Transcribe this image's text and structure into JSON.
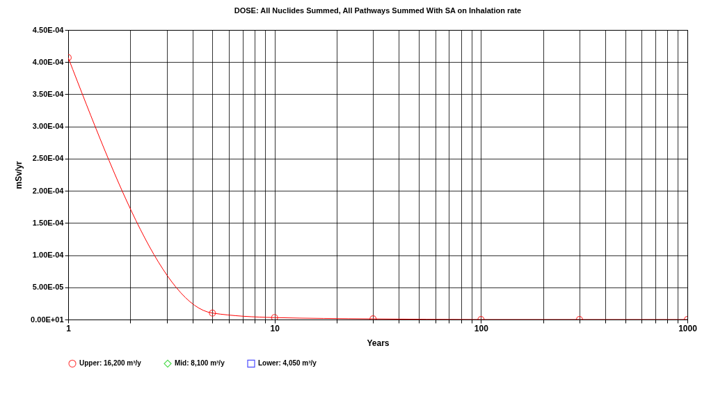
{
  "chart_data": {
    "type": "line",
    "title": "DOSE: All Nuclides Summed, All Pathways Summed With SA on Inhalation rate",
    "xlabel": "Years",
    "ylabel": "mSv/yr",
    "x": [
      1,
      5,
      10,
      30,
      100,
      300,
      1000
    ],
    "series": [
      {
        "name": "Upper: 16,200 m³/y",
        "color": "#ff0000",
        "marker": "circle",
        "values": [
          0.000407,
          1e-05,
          3e-06,
          1e-06,
          0,
          0,
          0
        ]
      },
      {
        "name": "Mid: 8,100 m³/y",
        "color": "#00cc00",
        "marker": "diamond",
        "values": [
          null,
          null,
          null,
          null,
          null,
          null,
          null
        ]
      },
      {
        "name": "Lower: 4,050 m³/y",
        "color": "#0000ff",
        "marker": "square",
        "values": [
          null,
          null,
          null,
          null,
          null,
          null,
          null
        ]
      }
    ],
    "log": "x",
    "xlim": [
      1,
      1000
    ],
    "xticks": [
      1,
      {
        "value": 2,
        "label": null
      },
      {
        "value": 3,
        "label": null
      },
      {
        "value": 4,
        "label": null
      },
      {
        "value": 5,
        "label": null
      },
      {
        "value": 6,
        "label": null
      },
      {
        "value": 7,
        "label": null
      },
      {
        "value": 8,
        "label": null
      },
      {
        "value": 9,
        "label": null
      },
      10,
      {
        "value": 20,
        "label": null
      },
      {
        "value": 30,
        "label": null
      },
      {
        "value": 40,
        "label": null
      },
      {
        "value": 50,
        "label": null
      },
      {
        "value": 60,
        "label": null
      },
      {
        "value": 70,
        "label": null
      },
      {
        "value": 80,
        "label": null
      },
      {
        "value": 90,
        "label": null
      },
      100,
      {
        "value": 200,
        "label": null
      },
      {
        "value": 300,
        "label": null
      },
      {
        "value": 400,
        "label": null
      },
      {
        "value": 500,
        "label": null
      },
      {
        "value": 600,
        "label": null
      },
      {
        "value": 700,
        "label": null
      },
      {
        "value": 800,
        "label": null
      },
      {
        "value": 900,
        "label": null
      },
      1000
    ],
    "ylim": [
      0,
      0.00045
    ],
    "yticks": [
      {
        "value": 0,
        "label": "0.00E+01"
      },
      {
        "value": 5e-05,
        "label": "5.00E-05"
      },
      {
        "value": 0.0001,
        "label": "1.00E-04"
      },
      {
        "value": 0.00015,
        "label": "1.50E-04"
      },
      {
        "value": 0.0002,
        "label": "2.00E-04"
      },
      {
        "value": 0.00025,
        "label": "2.50E-04"
      },
      {
        "value": 0.0003,
        "label": "3.00E-04"
      },
      {
        "value": 0.00035,
        "label": "3.50E-04"
      },
      {
        "value": 0.0004,
        "label": "4.00E-04"
      },
      {
        "value": 0.00045,
        "label": "4.50E-04"
      }
    ],
    "grid": true,
    "legend": "bottom",
    "line_style": "solid"
  }
}
